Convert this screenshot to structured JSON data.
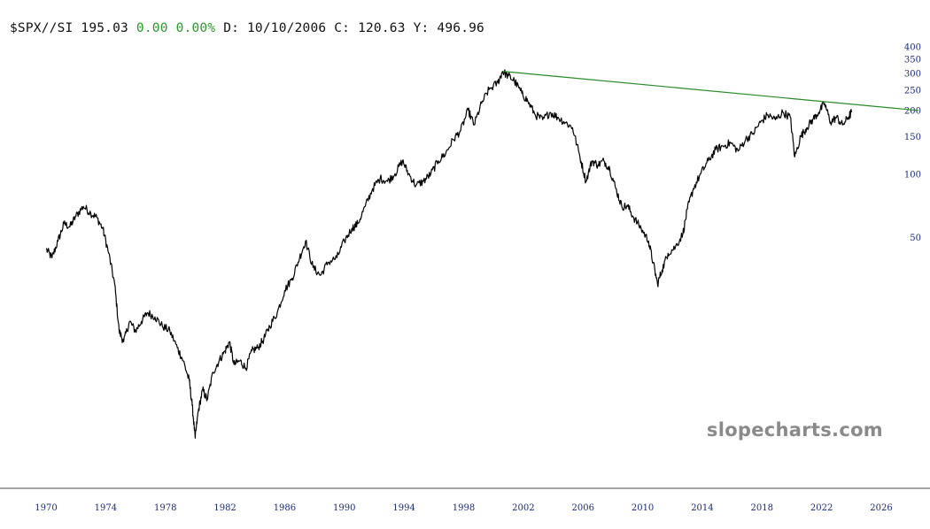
{
  "header": {
    "symbol": "$SPX//SI",
    "last": "195.03",
    "change": "0.00",
    "change_pct": "0.00%",
    "d_label": "D:",
    "d_value": "10/10/2006",
    "c_label": "C:",
    "c_value": "120.63",
    "y_label": "Y:",
    "y_value": "496.96",
    "change_color": "#2a9a2a"
  },
  "watermark": "slopecharts.com",
  "chart_data": {
    "type": "line",
    "scale": "log",
    "x_axis": {
      "range": [
        1969.0,
        2028.5
      ],
      "ticks": [
        1970,
        1974,
        1978,
        1982,
        1986,
        1990,
        1994,
        1998,
        2002,
        2006,
        2010,
        2014,
        2018,
        2022,
        2026
      ],
      "tick_labels": [
        "1970",
        "1974",
        "1978",
        "1982",
        "1986",
        "1990",
        "1994",
        "1998",
        "2002",
        "2006",
        "2010",
        "2014",
        "2018",
        "2022",
        "2026"
      ]
    },
    "y_axis": {
      "range": [
        4.5,
        430
      ],
      "ticks": [
        50,
        100,
        150,
        200,
        250,
        300,
        350,
        400
      ],
      "tick_labels": [
        "50",
        "100",
        "150",
        "200",
        "250",
        "300",
        "350",
        "400"
      ],
      "side": "right"
    },
    "series": [
      {
        "color": "#000000",
        "points": [
          [
            1970.0,
            44
          ],
          [
            1970.4,
            40
          ],
          [
            1970.8,
            48
          ],
          [
            1971.2,
            58
          ],
          [
            1971.6,
            56
          ],
          [
            1972.0,
            63
          ],
          [
            1972.5,
            70
          ],
          [
            1973.0,
            65
          ],
          [
            1973.4,
            62
          ],
          [
            1973.8,
            55
          ],
          [
            1974.2,
            42
          ],
          [
            1974.6,
            30
          ],
          [
            1974.9,
            18
          ],
          [
            1975.2,
            16
          ],
          [
            1975.6,
            20
          ],
          [
            1976.0,
            18
          ],
          [
            1976.4,
            20
          ],
          [
            1976.8,
            22
          ],
          [
            1977.3,
            21
          ],
          [
            1977.8,
            19
          ],
          [
            1978.3,
            18
          ],
          [
            1978.8,
            15
          ],
          [
            1979.2,
            13
          ],
          [
            1979.6,
            10.5
          ],
          [
            1979.8,
            8
          ],
          [
            1980.0,
            5.6
          ],
          [
            1980.2,
            7.5
          ],
          [
            1980.5,
            9.5
          ],
          [
            1980.8,
            8.5
          ],
          [
            1981.2,
            11.5
          ],
          [
            1981.6,
            13
          ],
          [
            1982.0,
            14.5
          ],
          [
            1982.3,
            16
          ],
          [
            1982.6,
            12.5
          ],
          [
            1983.0,
            13
          ],
          [
            1983.4,
            12
          ],
          [
            1983.8,
            14.5
          ],
          [
            1984.2,
            15
          ],
          [
            1984.6,
            16.5
          ],
          [
            1985.0,
            19
          ],
          [
            1985.5,
            22
          ],
          [
            1986.0,
            28
          ],
          [
            1986.5,
            32
          ],
          [
            1987.0,
            40
          ],
          [
            1987.4,
            48
          ],
          [
            1987.9,
            36
          ],
          [
            1988.4,
            33
          ],
          [
            1988.9,
            38
          ],
          [
            1989.5,
            40
          ],
          [
            1990.0,
            48
          ],
          [
            1990.5,
            55
          ],
          [
            1990.9,
            58
          ],
          [
            1991.4,
            70
          ],
          [
            1991.9,
            85
          ],
          [
            1992.4,
            95
          ],
          [
            1992.9,
            92
          ],
          [
            1993.4,
            100
          ],
          [
            1993.9,
            115
          ],
          [
            1994.3,
            100
          ],
          [
            1994.8,
            88
          ],
          [
            1995.3,
            92
          ],
          [
            1995.8,
            100
          ],
          [
            1996.3,
            115
          ],
          [
            1996.8,
            125
          ],
          [
            1997.3,
            145
          ],
          [
            1997.8,
            160
          ],
          [
            1998.3,
            200
          ],
          [
            1998.7,
            170
          ],
          [
            1999.2,
            215
          ],
          [
            1999.7,
            250
          ],
          [
            2000.3,
            270
          ],
          [
            2000.6,
            305
          ],
          [
            2001.0,
            290
          ],
          [
            2001.4,
            275
          ],
          [
            2001.9,
            240
          ],
          [
            2002.3,
            220
          ],
          [
            2002.8,
            190
          ],
          [
            2003.3,
            180
          ],
          [
            2003.8,
            195
          ],
          [
            2004.3,
            185
          ],
          [
            2004.8,
            175
          ],
          [
            2005.3,
            165
          ],
          [
            2005.8,
            120
          ],
          [
            2006.2,
            92
          ],
          [
            2006.6,
            115
          ],
          [
            2007.0,
            110
          ],
          [
            2007.4,
            115
          ],
          [
            2007.8,
            105
          ],
          [
            2008.2,
            85
          ],
          [
            2008.6,
            70
          ],
          [
            2009.0,
            70
          ],
          [
            2009.4,
            62
          ],
          [
            2009.9,
            55
          ],
          [
            2010.4,
            48
          ],
          [
            2010.7,
            38
          ],
          [
            2011.0,
            30
          ],
          [
            2011.3,
            35
          ],
          [
            2011.7,
            42
          ],
          [
            2012.2,
            45
          ],
          [
            2012.7,
            52
          ],
          [
            2013.0,
            68
          ],
          [
            2013.4,
            85
          ],
          [
            2013.9,
            100
          ],
          [
            2014.4,
            115
          ],
          [
            2014.9,
            130
          ],
          [
            2015.4,
            135
          ],
          [
            2015.9,
            140
          ],
          [
            2016.4,
            128
          ],
          [
            2016.9,
            145
          ],
          [
            2017.4,
            155
          ],
          [
            2017.9,
            175
          ],
          [
            2018.4,
            190
          ],
          [
            2018.9,
            180
          ],
          [
            2019.4,
            195
          ],
          [
            2019.9,
            185
          ],
          [
            2020.2,
            120
          ],
          [
            2020.6,
            150
          ],
          [
            2021.0,
            165
          ],
          [
            2021.4,
            180
          ],
          [
            2021.8,
            195
          ],
          [
            2022.2,
            215
          ],
          [
            2022.6,
            175
          ],
          [
            2023.0,
            185
          ],
          [
            2023.4,
            170
          ],
          [
            2023.8,
            185
          ],
          [
            2024.0,
            195
          ]
        ]
      }
    ],
    "trendline": {
      "color": "#2a8a2a",
      "from": [
        2000.6,
        305
      ],
      "to": [
        2028.5,
        199
      ]
    }
  }
}
